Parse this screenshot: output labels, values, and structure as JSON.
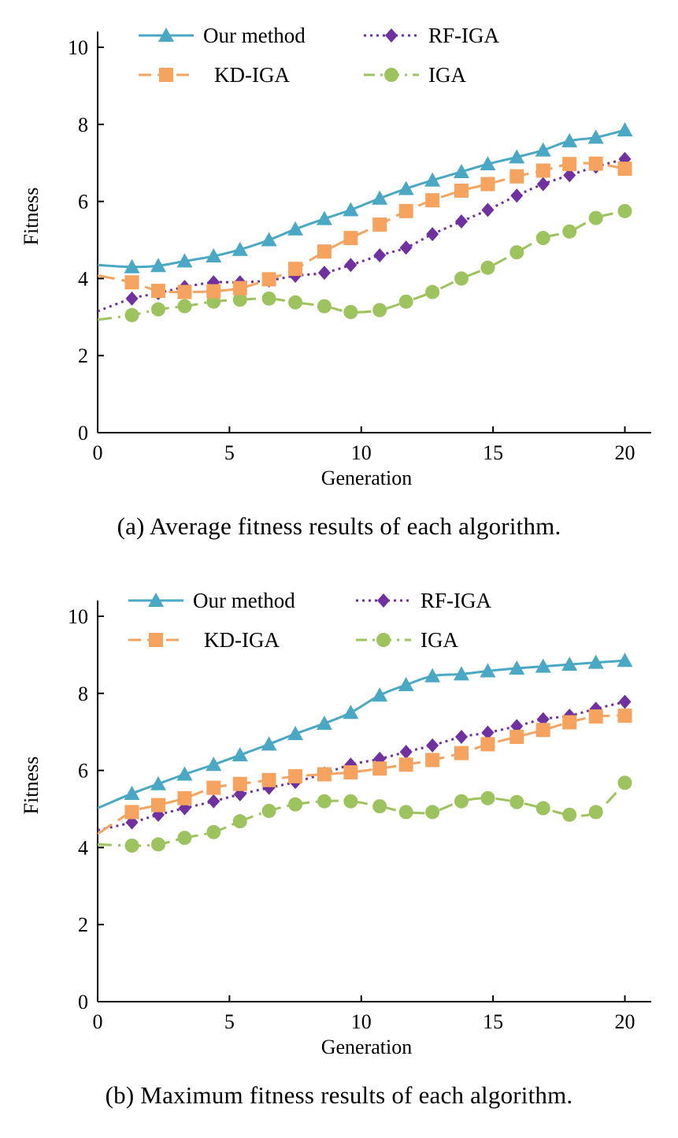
{
  "figure": {
    "captions": [
      "(a)  Average fitness results of each algorithm.",
      "(b)  Maximum fitness results of each algorithm."
    ]
  },
  "series_styles": [
    {
      "name": "Our method",
      "color": "#4aa8c4",
      "marker": "triangle",
      "dash": "solid"
    },
    {
      "name": "KD-IGA",
      "color": "#f5a35f",
      "marker": "square",
      "dash": "long-dash"
    },
    {
      "name": "RF-IGA",
      "color": "#7030a0",
      "marker": "diamond",
      "dash": "dotted"
    },
    {
      "name": "IGA",
      "color": "#9dc35f",
      "marker": "circle",
      "dash": "dash-dot"
    }
  ],
  "chart_data": [
    {
      "type": "line",
      "xlabel": "Generation",
      "ylabel": "Fitness",
      "xlim": [
        0,
        21
      ],
      "ylim": [
        0,
        10
      ],
      "xticks": [
        0,
        5,
        10,
        15,
        20
      ],
      "yticks": [
        0,
        2,
        4,
        6,
        8,
        10
      ],
      "grid": false,
      "legend": "top",
      "x": [
        0,
        1.3,
        2.3,
        3.3,
        4.4,
        5.4,
        6.5,
        7.5,
        8.6,
        9.6,
        10.7,
        11.7,
        12.7,
        13.8,
        14.8,
        15.9,
        16.9,
        17.9,
        18.9,
        20
      ],
      "series": [
        {
          "name": "Our method",
          "values": [
            4.35,
            4.3,
            4.33,
            4.45,
            4.58,
            4.75,
            5.0,
            5.28,
            5.55,
            5.78,
            6.08,
            6.33,
            6.55,
            6.77,
            6.97,
            7.15,
            7.33,
            7.57,
            7.66,
            7.85
          ],
          "first_marker": false
        },
        {
          "name": "KD-IGA",
          "values": [
            4.08,
            3.9,
            3.68,
            3.65,
            3.67,
            3.75,
            3.98,
            4.25,
            4.7,
            5.05,
            5.4,
            5.75,
            6.03,
            6.28,
            6.45,
            6.65,
            6.8,
            6.97,
            6.98,
            6.85
          ],
          "first_marker": false
        },
        {
          "name": "RF-IGA",
          "values": [
            3.15,
            3.48,
            3.62,
            3.78,
            3.9,
            3.9,
            3.95,
            4.07,
            4.15,
            4.35,
            4.6,
            4.8,
            5.15,
            5.48,
            5.78,
            6.15,
            6.45,
            6.68,
            6.9,
            7.1
          ],
          "first_marker": false
        },
        {
          "name": "IGA",
          "values": [
            2.93,
            3.05,
            3.2,
            3.28,
            3.4,
            3.45,
            3.48,
            3.38,
            3.28,
            3.13,
            3.18,
            3.4,
            3.65,
            4.0,
            4.28,
            4.68,
            5.05,
            5.22,
            5.57,
            5.75
          ],
          "first_marker": false
        }
      ]
    },
    {
      "type": "line",
      "xlabel": "Generation",
      "ylabel": "Fitness",
      "xlim": [
        0,
        21
      ],
      "ylim": [
        0,
        10
      ],
      "xticks": [
        0,
        5,
        10,
        15,
        20
      ],
      "yticks": [
        0,
        2,
        4,
        6,
        8,
        10
      ],
      "grid": false,
      "legend": "top",
      "x": [
        0,
        1.3,
        2.3,
        3.3,
        4.4,
        5.4,
        6.5,
        7.5,
        8.6,
        9.6,
        10.7,
        11.7,
        12.7,
        13.8,
        14.8,
        15.9,
        16.9,
        17.9,
        18.9,
        20
      ],
      "series": [
        {
          "name": "Our method",
          "values": [
            5.02,
            5.4,
            5.65,
            5.9,
            6.15,
            6.4,
            6.68,
            6.95,
            7.22,
            7.5,
            7.95,
            8.22,
            8.45,
            8.5,
            8.58,
            8.65,
            8.7,
            8.75,
            8.8,
            8.85
          ],
          "first_marker": false
        },
        {
          "name": "KD-IGA",
          "values": [
            4.35,
            4.92,
            5.1,
            5.28,
            5.55,
            5.65,
            5.75,
            5.85,
            5.9,
            5.95,
            6.05,
            6.15,
            6.27,
            6.45,
            6.68,
            6.87,
            7.05,
            7.25,
            7.4,
            7.42
          ],
          "first_marker": false
        },
        {
          "name": "RF-IGA",
          "values": [
            4.45,
            4.65,
            4.85,
            5.02,
            5.2,
            5.38,
            5.55,
            5.7,
            5.92,
            6.15,
            6.3,
            6.48,
            6.65,
            6.87,
            6.98,
            7.15,
            7.33,
            7.42,
            7.6,
            7.78
          ],
          "first_marker": false
        },
        {
          "name": "IGA",
          "values": [
            4.08,
            4.05,
            4.08,
            4.25,
            4.4,
            4.68,
            4.95,
            5.12,
            5.2,
            5.2,
            5.07,
            4.92,
            4.92,
            5.2,
            5.28,
            5.18,
            5.02,
            4.85,
            4.92,
            5.68
          ],
          "first_marker": false
        }
      ]
    }
  ]
}
